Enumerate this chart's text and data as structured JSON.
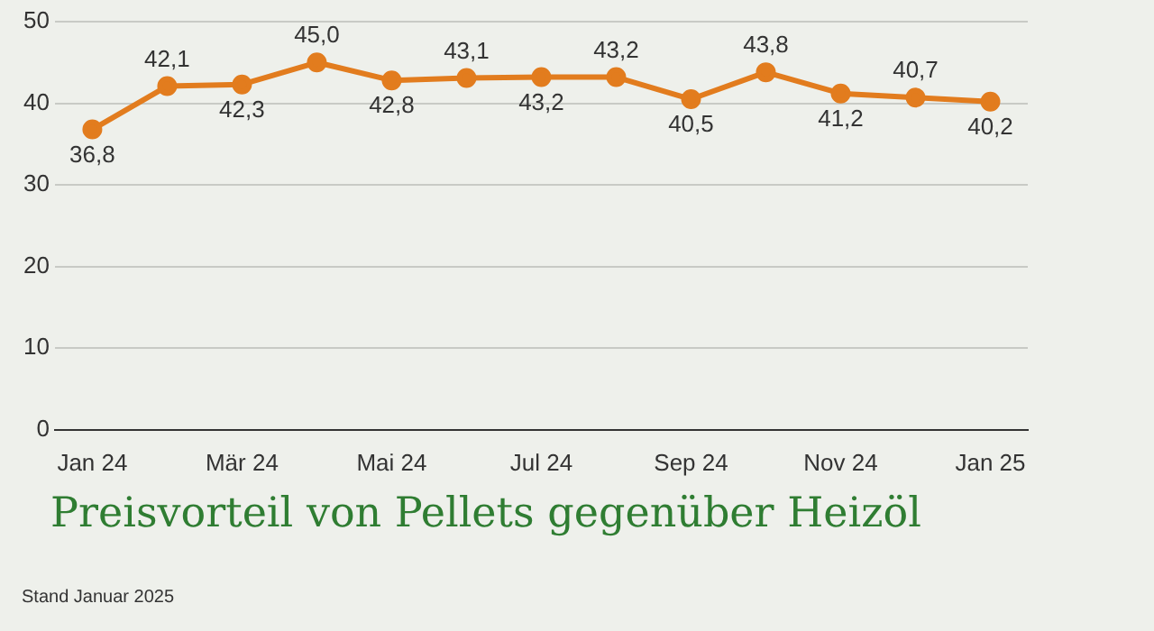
{
  "chart_data": {
    "type": "line",
    "title": "Preisvorteil von Pellets gegenüber Heizöl",
    "categories": [
      "Jan 24",
      null,
      "Mär 24",
      null,
      "Mai 24",
      null,
      "Jul 24",
      null,
      "Sep 24",
      null,
      "Nov 24",
      null,
      "Jan 25"
    ],
    "series": [
      {
        "color": "#e27c1e",
        "values": [
          36.8,
          42.1,
          42.3,
          45.0,
          42.8,
          43.1,
          43.2,
          43.2,
          40.5,
          43.8,
          41.2,
          40.7,
          40.2
        ],
        "value_labels": [
          "36,8",
          "42,1",
          "42,3",
          "45,0",
          "42,8",
          "43,1",
          "43,2",
          "43,2",
          "40,5",
          "43,8",
          "41,2",
          "40,7",
          "40,2"
        ]
      }
    ],
    "ylim": [
      0,
      50
    ],
    "yticks": [
      0,
      10,
      20,
      30,
      40,
      50
    ],
    "grid": "y",
    "marker": "circle",
    "line_style": "solid",
    "legend": false,
    "annotations": [
      "Stand Januar 2025"
    ]
  }
}
